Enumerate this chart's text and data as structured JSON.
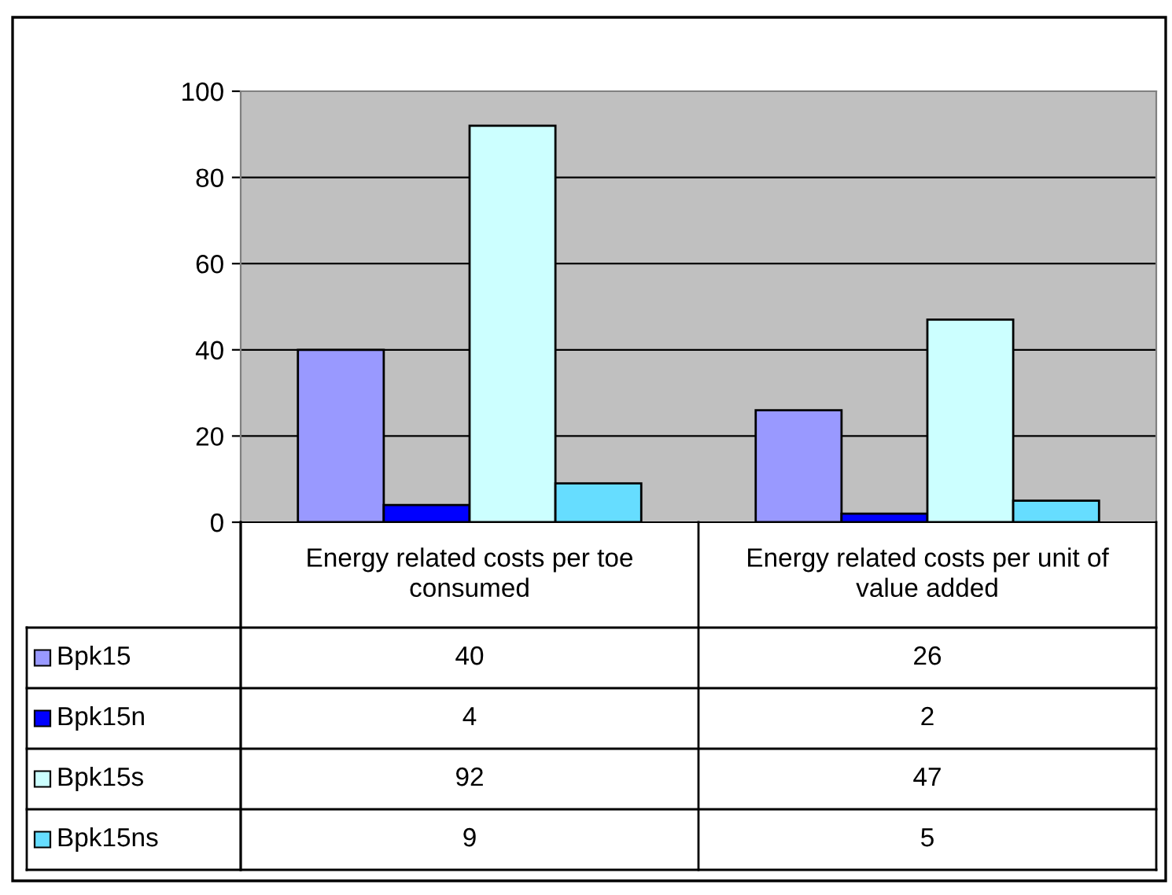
{
  "chart_data": {
    "type": "bar",
    "categories": [
      "Energy related costs per toe consumed",
      "Energy related costs per unit of value added"
    ],
    "series": [
      {
        "name": "Bpk15",
        "color": "#9999ff",
        "values": [
          40,
          26
        ]
      },
      {
        "name": "Bpk15n",
        "color": "#0000ff",
        "values": [
          4,
          2
        ]
      },
      {
        "name": "Bpk15s",
        "color": "#ccffff",
        "values": [
          92,
          47
        ]
      },
      {
        "name": "Bpk15ns",
        "color": "#66ddff",
        "values": [
          9,
          5
        ]
      }
    ],
    "ylim": [
      0,
      100
    ],
    "yticks": [
      0,
      20,
      40,
      60,
      80,
      100
    ],
    "grid": "y",
    "data_labels": true,
    "legend": "bottom"
  }
}
